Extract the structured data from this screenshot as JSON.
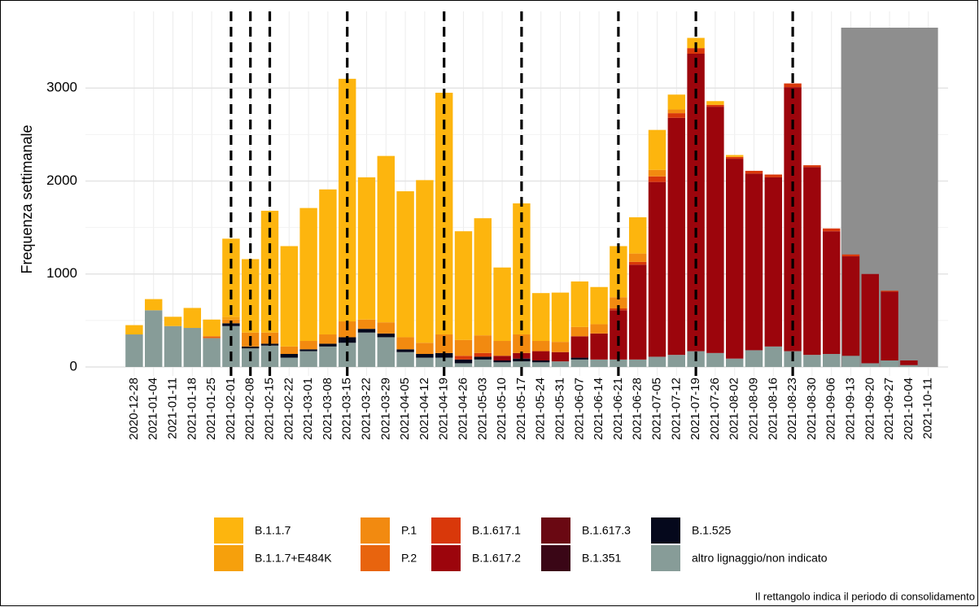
{
  "chart_data": {
    "type": "stacked_bar",
    "ylabel": "Frequenza settimanale",
    "caption": "Il rettangolo indica il periodo di consolidamento",
    "categories": [
      "2020-12-28",
      "2021-01-04",
      "2021-01-11",
      "2021-01-18",
      "2021-01-25",
      "2021-02-01",
      "2021-02-08",
      "2021-02-15",
      "2021-02-22",
      "2021-03-01",
      "2021-03-08",
      "2021-03-15",
      "2021-03-22",
      "2021-03-29",
      "2021-04-05",
      "2021-04-12",
      "2021-04-19",
      "2021-04-26",
      "2021-05-03",
      "2021-05-10",
      "2021-05-17",
      "2021-05-24",
      "2021-05-31",
      "2021-06-07",
      "2021-06-14",
      "2021-06-21",
      "2021-06-28",
      "2021-07-05",
      "2021-07-12",
      "2021-07-19",
      "2021-07-26",
      "2021-08-02",
      "2021-08-09",
      "2021-08-16",
      "2021-08-23",
      "2021-08-30",
      "2021-09-06",
      "2021-09-13",
      "2021-09-20",
      "2021-09-27",
      "2021-10-04",
      "2021-10-11"
    ],
    "series": [
      {
        "name": "B.1.1.7",
        "color": "#FDB50E",
        "values": [
          100,
          120,
          100,
          215,
          180,
          840,
          790,
          1310,
          1080,
          1430,
          1560,
          2610,
          1530,
          1790,
          1570,
          1750,
          2600,
          1170,
          1260,
          790,
          1410,
          515,
          530,
          490,
          400,
          550,
          390,
          430,
          160,
          110,
          40,
          20,
          0,
          0,
          0,
          0,
          0,
          0,
          0,
          0,
          0,
          0
        ]
      },
      {
        "name": "B.1.1.7+E484K",
        "color": "#F6A00C",
        "values": [
          0,
          0,
          0,
          0,
          0,
          30,
          0,
          0,
          0,
          0,
          0,
          0,
          0,
          0,
          0,
          0,
          0,
          0,
          0,
          0,
          0,
          0,
          0,
          0,
          0,
          0,
          0,
          0,
          0,
          0,
          0,
          0,
          0,
          0,
          0,
          0,
          0,
          0,
          0,
          0,
          0,
          0
        ]
      },
      {
        "name": "P.1",
        "color": "#F28A10",
        "values": [
          0,
          0,
          0,
          0,
          0,
          40,
          150,
          120,
          80,
          90,
          100,
          170,
          100,
          120,
          130,
          120,
          200,
          170,
          190,
          160,
          200,
          110,
          110,
          100,
          100,
          120,
          90,
          70,
          40,
          0,
          0,
          0,
          0,
          0,
          0,
          0,
          0,
          0,
          0,
          0,
          0,
          0
        ]
      },
      {
        "name": "P.2",
        "color": "#E8640E",
        "values": [
          0,
          0,
          0,
          0,
          20,
          0,
          0,
          0,
          0,
          0,
          0,
          0,
          0,
          0,
          0,
          0,
          0,
          0,
          0,
          0,
          0,
          0,
          0,
          0,
          0,
          0,
          0,
          0,
          0,
          0,
          0,
          0,
          0,
          0,
          0,
          0,
          0,
          0,
          0,
          0,
          0,
          0
        ]
      },
      {
        "name": "B.1.617.1",
        "color": "#D9380A",
        "values": [
          0,
          0,
          0,
          0,
          0,
          0,
          0,
          0,
          0,
          0,
          0,
          0,
          0,
          0,
          0,
          0,
          0,
          40,
          40,
          0,
          0,
          0,
          0,
          0,
          0,
          20,
          30,
          60,
          50,
          60,
          20,
          20,
          30,
          30,
          40,
          20,
          30,
          20,
          0,
          10,
          0,
          0
        ]
      },
      {
        "name": "B.1.617.2",
        "color": "#9C050C",
        "values": [
          0,
          0,
          0,
          0,
          0,
          0,
          0,
          0,
          0,
          0,
          0,
          0,
          0,
          0,
          0,
          0,
          0,
          0,
          0,
          50,
          60,
          100,
          100,
          230,
          280,
          530,
          1020,
          1880,
          2550,
          3200,
          2650,
          2150,
          1900,
          1820,
          2840,
          2020,
          1320,
          1070,
          960,
          740,
          50,
          0
        ]
      },
      {
        "name": "B.1.617.3",
        "color": "#6A0812",
        "values": [
          0,
          0,
          0,
          0,
          0,
          0,
          0,
          0,
          0,
          0,
          0,
          0,
          0,
          0,
          0,
          0,
          0,
          0,
          0,
          0,
          0,
          0,
          0,
          0,
          0,
          0,
          0,
          0,
          0,
          0,
          0,
          0,
          0,
          0,
          0,
          0,
          0,
          0,
          0,
          0,
          0,
          0
        ]
      },
      {
        "name": "B.1.351",
        "color": "#3A0616",
        "values": [
          0,
          0,
          0,
          0,
          0,
          0,
          0,
          0,
          0,
          0,
          0,
          0,
          0,
          0,
          0,
          0,
          0,
          0,
          0,
          0,
          0,
          0,
          0,
          0,
          0,
          0,
          0,
          0,
          0,
          0,
          0,
          0,
          0,
          0,
          0,
          0,
          0,
          0,
          0,
          0,
          0,
          0
        ]
      },
      {
        "name": "B.1.525",
        "color": "#05081C",
        "values": [
          0,
          0,
          0,
          0,
          0,
          30,
          20,
          20,
          40,
          20,
          30,
          60,
          40,
          40,
          30,
          40,
          50,
          40,
          30,
          20,
          30,
          20,
          0,
          20,
          0,
          0,
          0,
          0,
          0,
          0,
          0,
          0,
          0,
          0,
          0,
          0,
          0,
          0,
          0,
          0,
          0,
          0
        ]
      },
      {
        "name": "altro lignaggio/non indicato",
        "color": "#879C98",
        "values": [
          350,
          610,
          440,
          420,
          310,
          440,
          200,
          230,
          100,
          170,
          220,
          260,
          370,
          320,
          160,
          100,
          100,
          40,
          80,
          50,
          60,
          50,
          60,
          80,
          80,
          80,
          80,
          110,
          130,
          170,
          150,
          90,
          180,
          220,
          170,
          130,
          140,
          120,
          40,
          70,
          20,
          0
        ]
      }
    ],
    "vlines": [
      "2021-02-01",
      "2021-02-08",
      "2021-02-15",
      "2021-03-15",
      "2021-04-19",
      "2021-05-17",
      "2021-06-21",
      "2021-07-19",
      "2021-08-23"
    ],
    "shaded_from": "2021-09-13",
    "shade_color": "#8E8E8E",
    "ylim": [
      -80,
      3650
    ],
    "yticks": [
      0,
      1000,
      2000,
      3000
    ],
    "grid": true
  }
}
